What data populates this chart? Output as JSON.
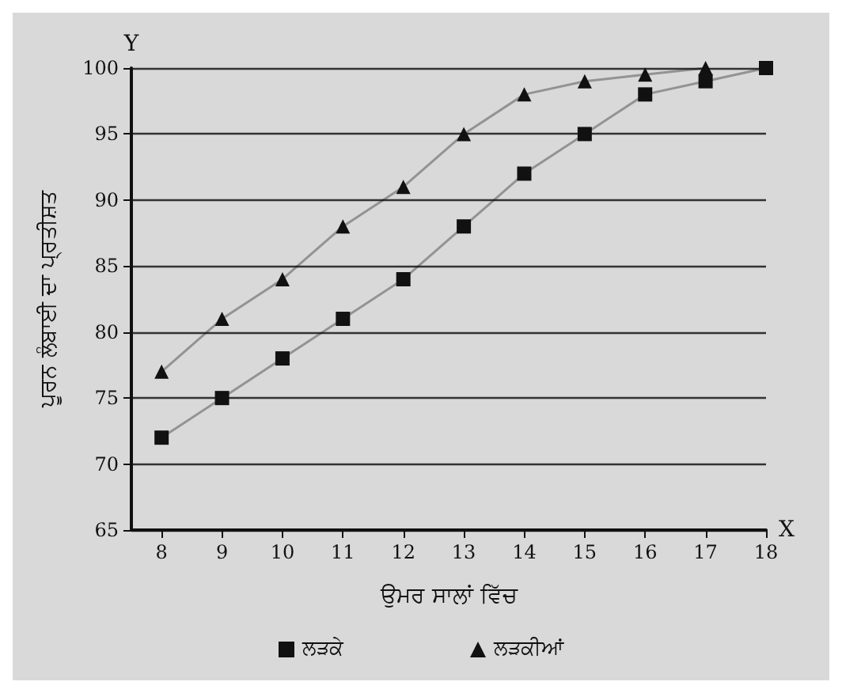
{
  "chart_data": {
    "type": "line",
    "xlabel": "ਉਮਰ ਸਾਲਾਂ ਵਿੱਚ",
    "ylabel": "ਪੂਰਨ ਲੰਬਾਈ ਦਾ ਪ੍ਰਤੀਸ਼ਤ",
    "annotations": [
      "Y",
      "X"
    ],
    "x": [
      8,
      9,
      10,
      11,
      12,
      13,
      14,
      15,
      16,
      17,
      18
    ],
    "series": [
      {
        "name": "ਲੜਕੇ",
        "color": "#111111",
        "marker": "square",
        "values": [
          72,
          75,
          78,
          81,
          84,
          88,
          92,
          95,
          98,
          99,
          100
        ]
      },
      {
        "name": "ਲੜਕੀਆਂ",
        "color": "#111111",
        "marker": "triangle",
        "values": [
          77,
          81,
          84,
          88,
          91,
          95,
          98,
          99,
          99.5,
          100,
          null
        ]
      }
    ],
    "xlim": [
      7.5,
      18
    ],
    "xticks": [
      8,
      9,
      10,
      11,
      12,
      13,
      14,
      15,
      16,
      17,
      18
    ],
    "ylim": [
      65,
      100
    ],
    "yticks": [
      65,
      70,
      75,
      80,
      85,
      90,
      95,
      100
    ],
    "grid": "y",
    "legend": "bottom",
    "line_style": "solid"
  }
}
